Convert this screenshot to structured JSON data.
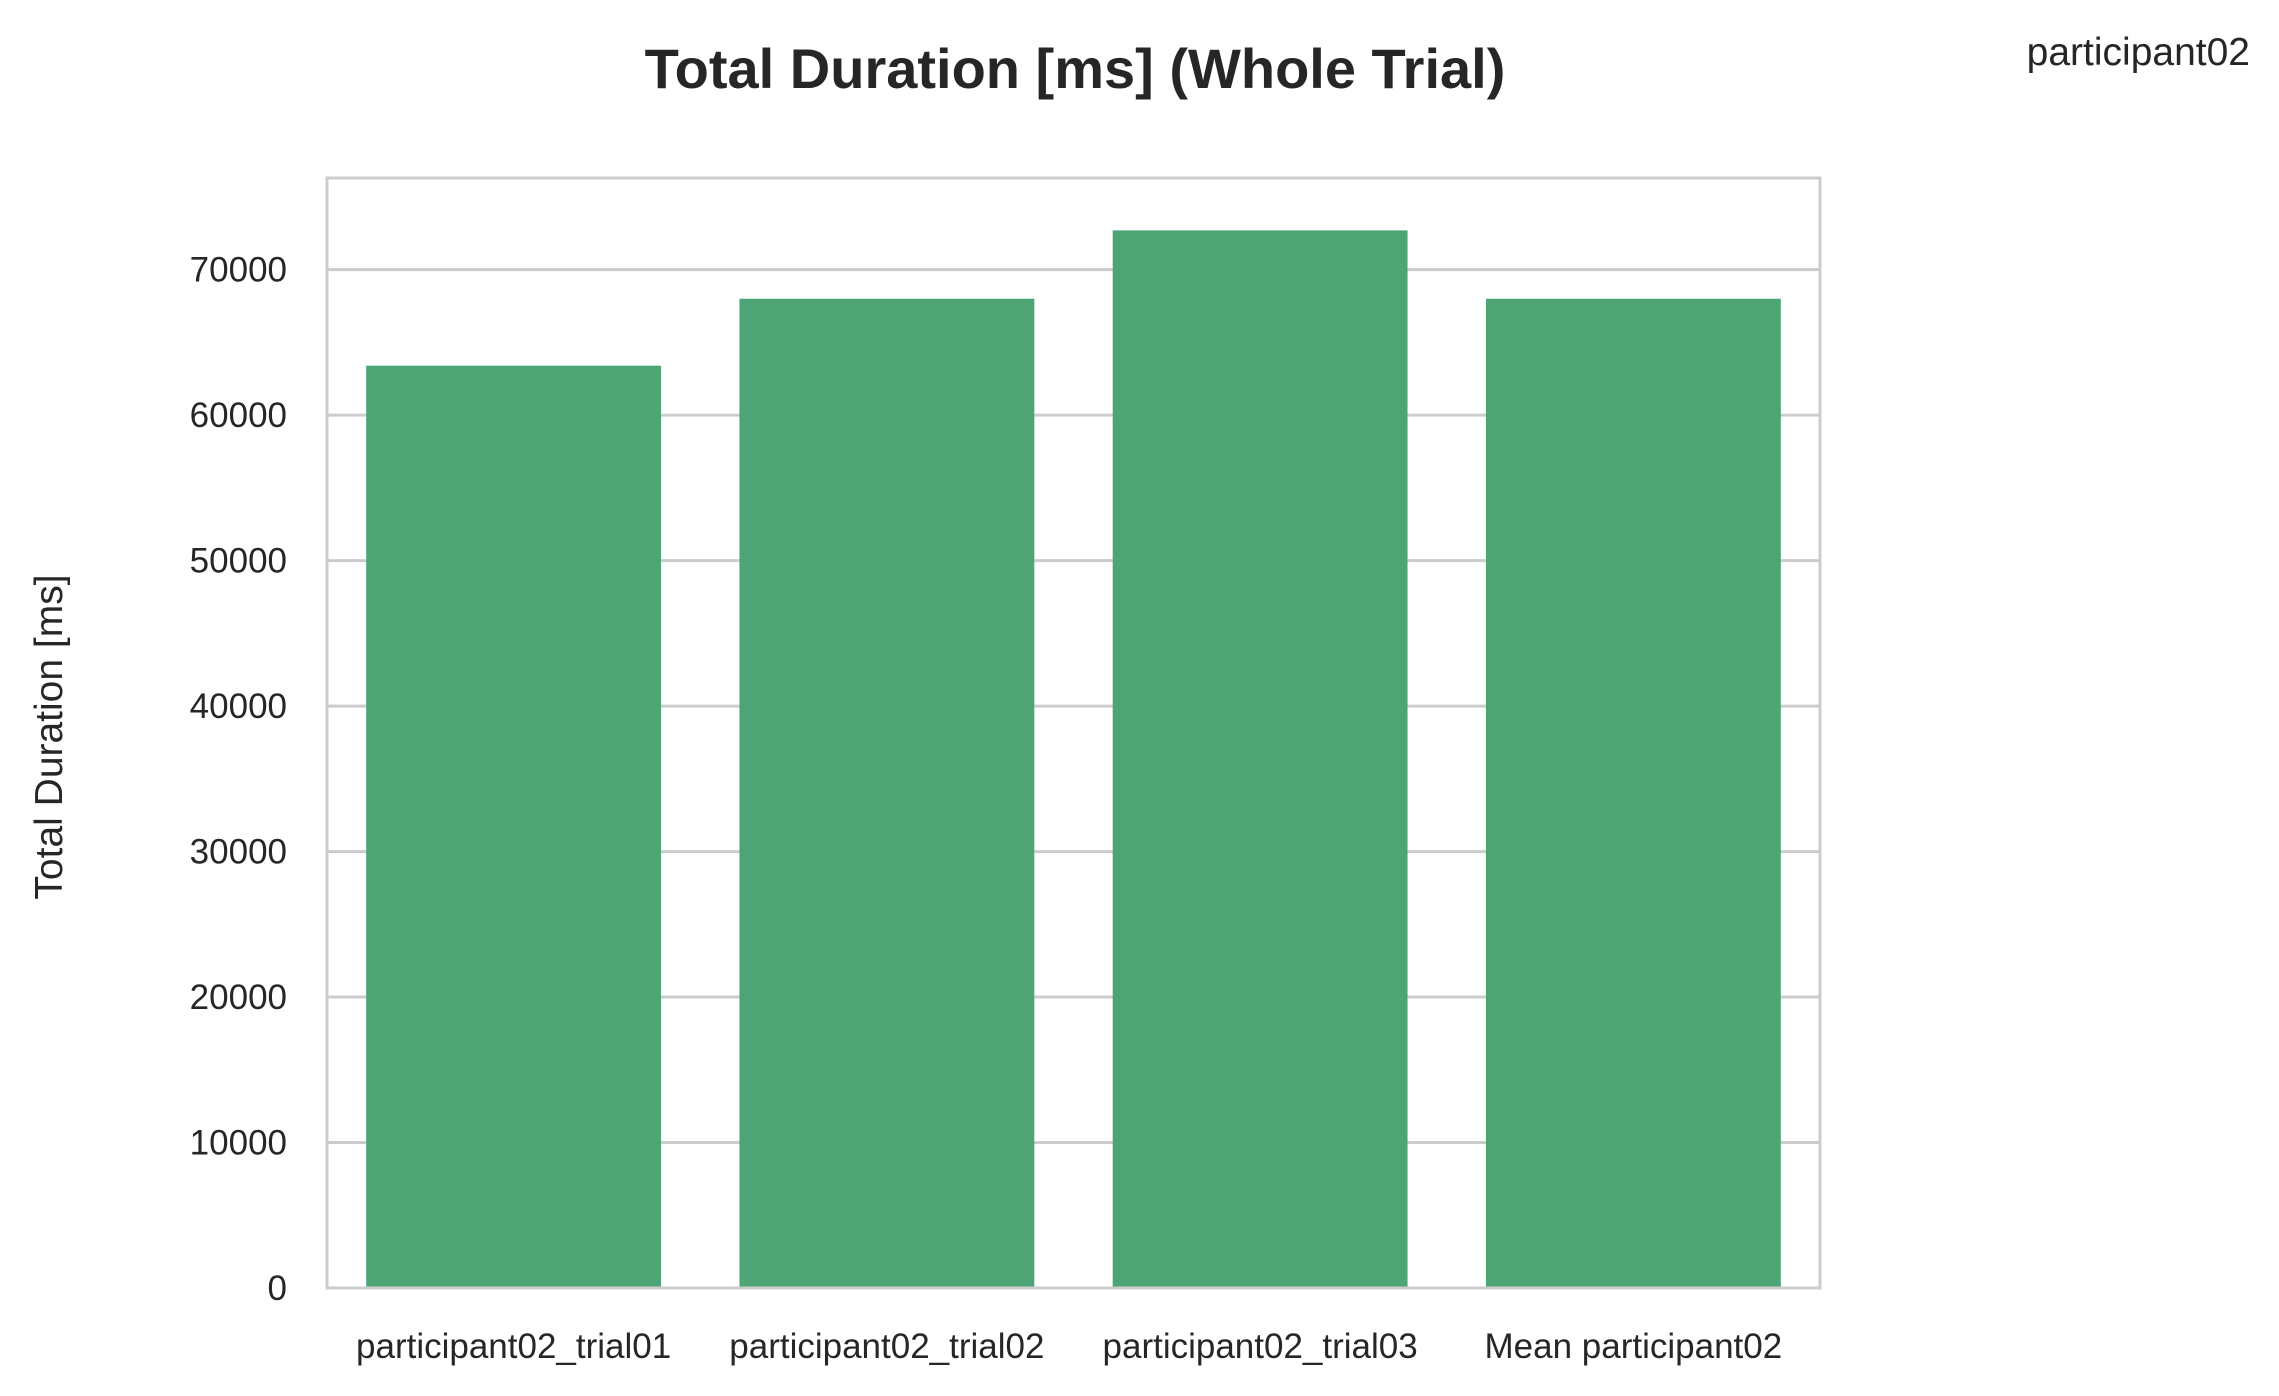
{
  "chart_data": {
    "type": "bar",
    "title": "Total Duration [ms] (Whole Trial)",
    "xlabel": "",
    "ylabel": "Total Duration [ms]",
    "categories": [
      "participant02_trial01",
      "participant02_trial02",
      "participant02_trial03",
      "Mean participant02"
    ],
    "values": [
      63400,
      68000,
      72700,
      68000
    ],
    "ylim": [
      0,
      76300
    ],
    "yticks": [
      0,
      10000,
      20000,
      30000,
      40000,
      50000,
      60000,
      70000
    ],
    "grid": true,
    "bar_color": "#4da575",
    "grid_color": "#cccccc",
    "text_color": "#262626"
  },
  "corner_label": "participant02"
}
